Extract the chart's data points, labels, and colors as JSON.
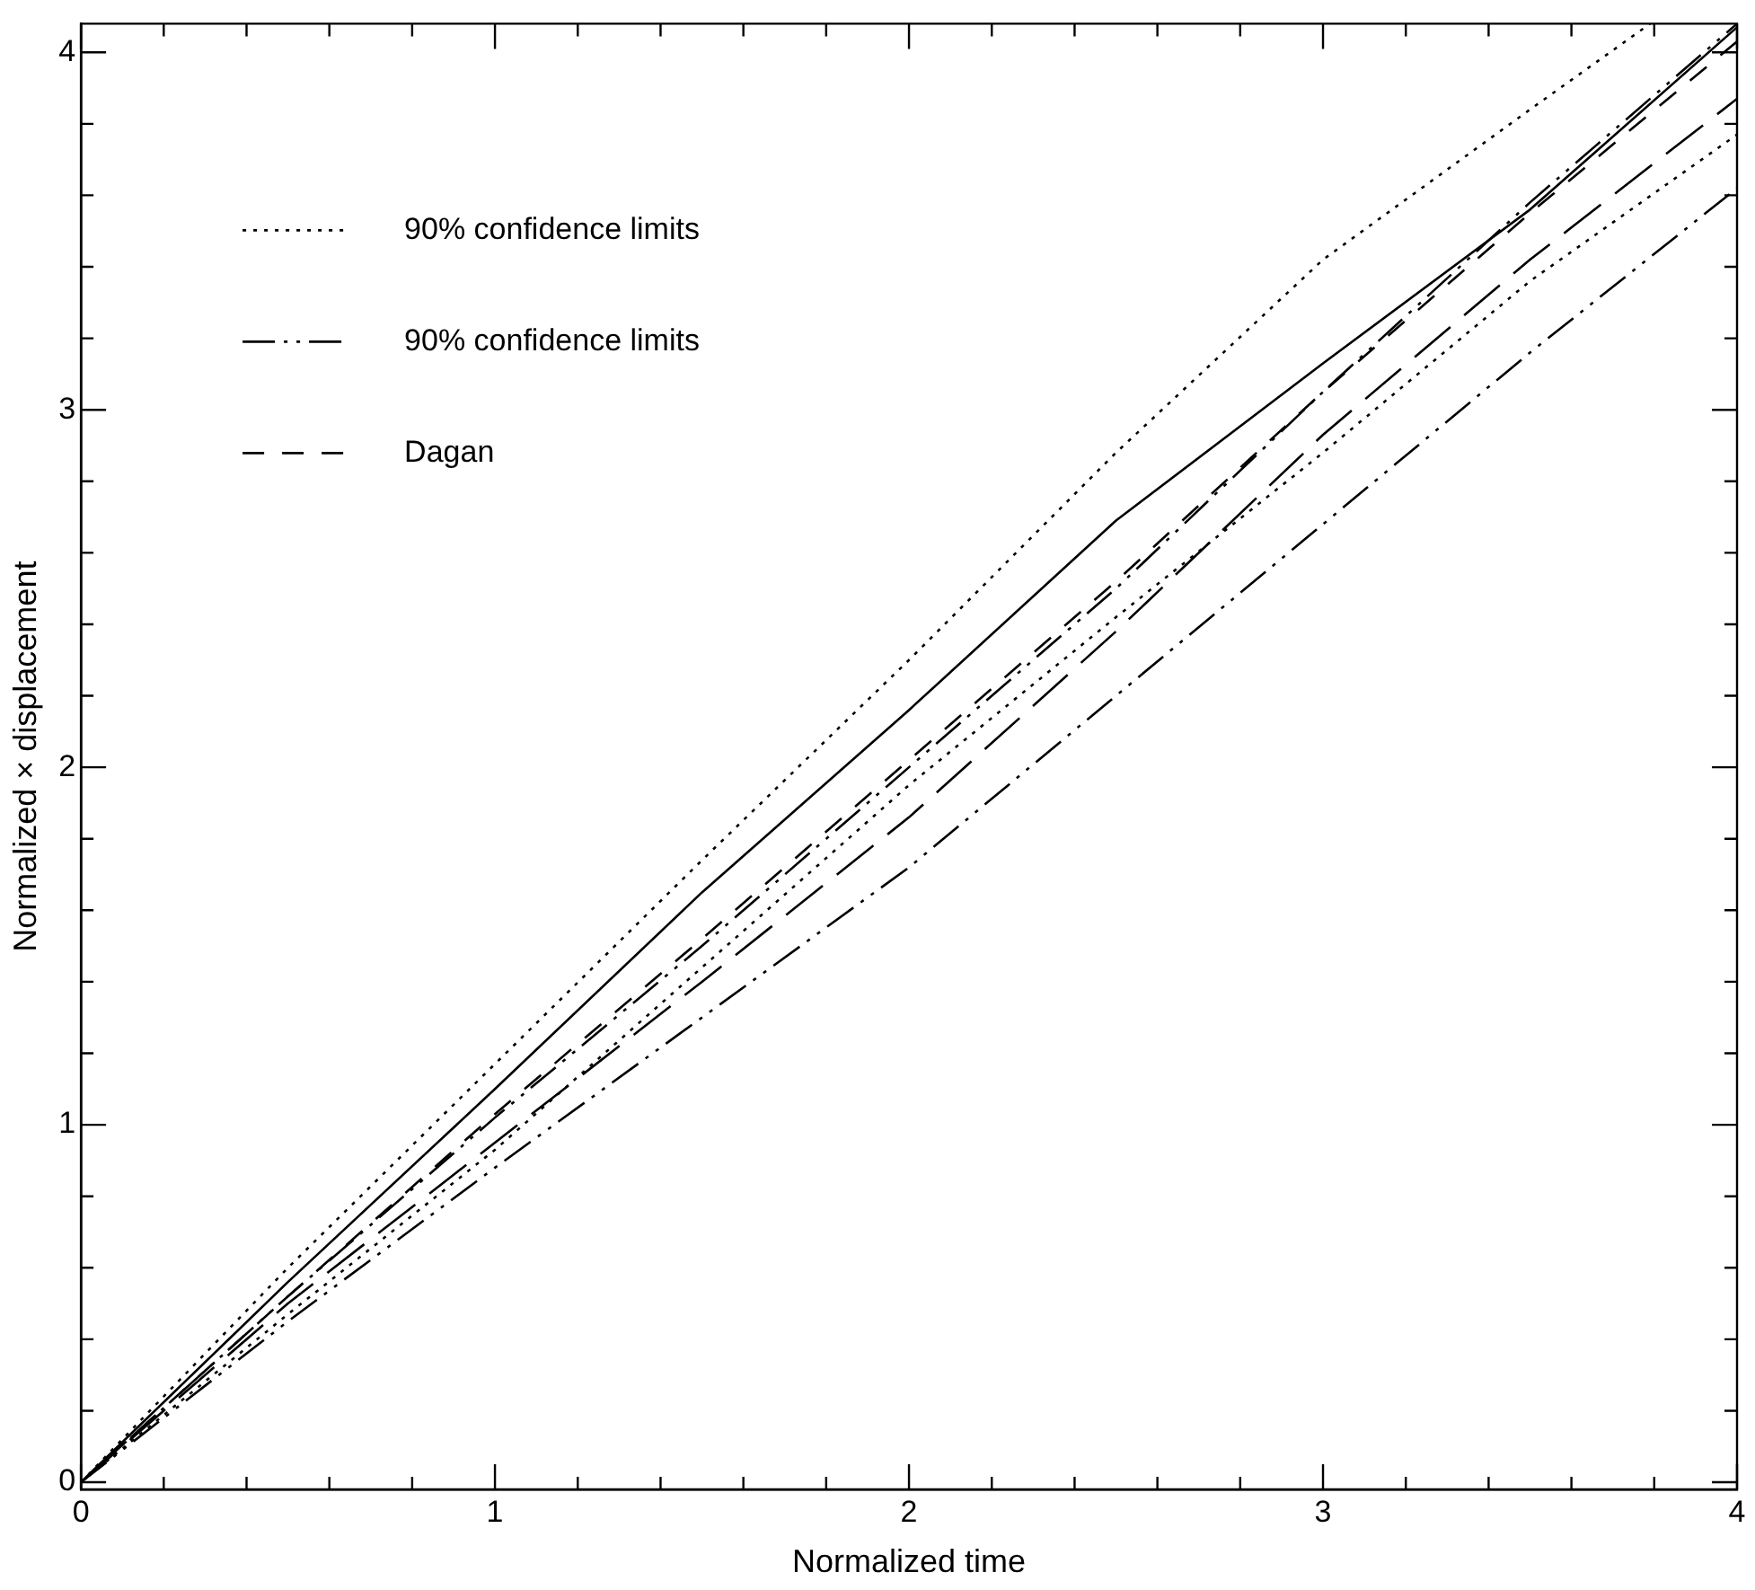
{
  "chart_data": {
    "type": "line",
    "xlabel": "Normalized time",
    "ylabel": "Normalized × displacement",
    "xlim": [
      0,
      4
    ],
    "ylim": [
      -0.02,
      4.08
    ],
    "xticks": [
      0,
      {
        "value": 0.2,
        "label": null
      },
      {
        "value": 0.4,
        "label": null
      },
      {
        "value": 0.6,
        "label": null
      },
      {
        "value": 0.8,
        "label": null
      },
      1,
      {
        "value": 1.2,
        "label": null
      },
      {
        "value": 1.4,
        "label": null
      },
      {
        "value": 1.6,
        "label": null
      },
      {
        "value": 1.8,
        "label": null
      },
      2,
      {
        "value": 2.2,
        "label": null
      },
      {
        "value": 2.4,
        "label": null
      },
      {
        "value": 2.6,
        "label": null
      },
      {
        "value": 2.8,
        "label": null
      },
      3,
      {
        "value": 3.2,
        "label": null
      },
      {
        "value": 3.4,
        "label": null
      },
      {
        "value": 3.6,
        "label": null
      },
      {
        "value": 3.8,
        "label": null
      },
      4
    ],
    "yticks": [
      0,
      {
        "value": 0.2,
        "label": null
      },
      {
        "value": 0.4,
        "label": null
      },
      {
        "value": 0.6,
        "label": null
      },
      {
        "value": 0.8,
        "label": null
      },
      1,
      {
        "value": 1.2,
        "label": null
      },
      {
        "value": 1.4,
        "label": null
      },
      {
        "value": 1.6,
        "label": null
      },
      {
        "value": 1.8,
        "label": null
      },
      2,
      {
        "value": 2.2,
        "label": null
      },
      {
        "value": 2.4,
        "label": null
      },
      {
        "value": 2.6,
        "label": null
      },
      {
        "value": 2.8,
        "label": null
      },
      3,
      {
        "value": 3.2,
        "label": null
      },
      {
        "value": 3.4,
        "label": null
      },
      {
        "value": 3.6,
        "label": null
      },
      {
        "value": 3.8,
        "label": null
      },
      4
    ],
    "grid": false,
    "legend": "top left",
    "marker": "none",
    "series": [
      {
        "color": "#000000",
        "line_style": "solid",
        "x": [
          0,
          0.5,
          1,
          1.5,
          2,
          2.5,
          3,
          3.5,
          4
        ],
        "values": [
          0,
          0.56,
          1.1,
          1.65,
          2.16,
          2.69,
          3.13,
          3.56,
          4.07
        ]
      },
      {
        "name": "90% confidence limits",
        "color": "#000000",
        "line_style": "dotted",
        "x": [
          0,
          0.5,
          1,
          1.5,
          2,
          2.5,
          3,
          3.5,
          3.79
        ],
        "values": [
          0,
          0.6,
          1.17,
          1.74,
          2.3,
          2.88,
          3.42,
          3.84,
          4.08
        ]
      },
      {
        "color": "#000000",
        "line_style": "dotted",
        "x": [
          0,
          0.5,
          1,
          1.5,
          2,
          2.5,
          3,
          3.5,
          4
        ],
        "values": [
          0,
          0.47,
          0.93,
          1.44,
          1.95,
          2.42,
          2.88,
          3.36,
          3.77
        ]
      },
      {
        "color": "#000000",
        "line_style": "longdash",
        "x": [
          0,
          0.5,
          1,
          1.5,
          2,
          2.5,
          3,
          3.5,
          4
        ],
        "values": [
          0,
          0.5,
          0.95,
          1.4,
          1.86,
          2.38,
          2.93,
          3.42,
          3.87
        ]
      },
      {
        "name": "90% confidence limits",
        "color": "#000000",
        "line_style": "dashdot",
        "x": [
          0,
          0.5,
          1,
          1.5,
          2,
          2.5,
          3,
          3.5,
          4
        ],
        "values": [
          0,
          0.52,
          1.02,
          1.5,
          2.0,
          2.5,
          3.05,
          3.58,
          4.08
        ]
      },
      {
        "color": "#000000",
        "line_style": "dashdot",
        "x": [
          0,
          0.5,
          1,
          1.5,
          2,
          2.5,
          3,
          3.5,
          4
        ],
        "values": [
          0,
          0.45,
          0.88,
          1.3,
          1.72,
          2.2,
          2.68,
          3.16,
          3.62
        ]
      },
      {
        "name": "Dagan",
        "color": "#000000",
        "line_style": "dashed",
        "x": [
          0,
          0.5,
          1,
          1.5,
          2,
          2.5,
          3,
          3.5,
          4
        ],
        "values": [
          0,
          0.52,
          1.03,
          1.52,
          2.02,
          2.52,
          3.05,
          3.55,
          4.03
        ]
      }
    ]
  }
}
